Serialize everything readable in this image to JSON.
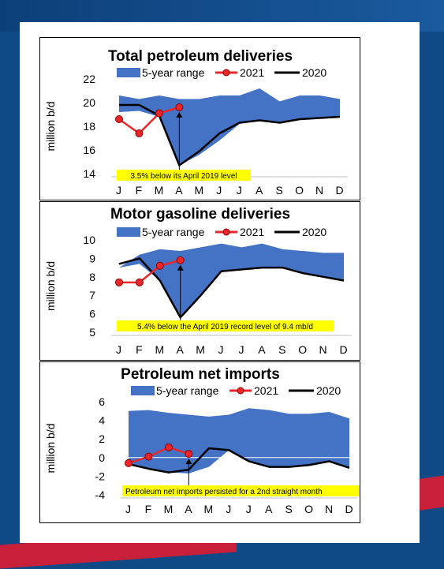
{
  "charts": [
    {
      "title": "Total petroleum deliveries",
      "ylabel": "million b/d",
      "ylim": [
        14,
        22
      ],
      "yticks": [
        14,
        16,
        18,
        20,
        22
      ],
      "months": [
        "J",
        "F",
        "M",
        "A",
        "M",
        "J",
        "J",
        "A",
        "S",
        "O",
        "N",
        "D"
      ],
      "legend": {
        "range": "5-year range",
        "s2021": "2021",
        "s2020": "2020"
      },
      "annotation": "3.5% below its April 2019 level"
    },
    {
      "title": "Motor gasoline deliveries",
      "ylabel": "million b/d",
      "ylim": [
        5,
        10
      ],
      "yticks": [
        5,
        6,
        7,
        8,
        9,
        10
      ],
      "months": [
        "J",
        "F",
        "M",
        "A",
        "M",
        "J",
        "J",
        "A",
        "S",
        "O",
        "N",
        "D"
      ],
      "legend": {
        "range": "5-year range",
        "s2021": "2021",
        "s2020": "2020"
      },
      "annotation": "5.4% below the April 2019 record level of 9.4 mb/d"
    },
    {
      "title": "Petroleum net imports",
      "ylabel": "million b/d",
      "ylim": [
        -4,
        6
      ],
      "yticks": [
        -4,
        -2,
        0,
        2,
        4,
        6
      ],
      "months": [
        "J",
        "F",
        "M",
        "A",
        "M",
        "J",
        "J",
        "A",
        "S",
        "O",
        "N",
        "D"
      ],
      "legend": {
        "range": "5-year range",
        "s2021": "2021",
        "s2020": "2020"
      },
      "annotation": "Petroleum net imports persisted for a 2nd straight month"
    }
  ],
  "chart_data": [
    {
      "type": "area",
      "title": "Total petroleum deliveries",
      "ylabel": "million b/d",
      "ylim": [
        14,
        22
      ],
      "x": [
        "J",
        "F",
        "M",
        "A",
        "M",
        "J",
        "J",
        "A",
        "S",
        "O",
        "N",
        "D"
      ],
      "series": [
        {
          "name": "5-year range",
          "high": [
            20.6,
            20.3,
            20.6,
            20.3,
            20.3,
            20.6,
            20.6,
            21.2,
            20.1,
            20.6,
            20.6,
            20.3
          ],
          "low": [
            19.2,
            19.3,
            18.8,
            14.7,
            15.6,
            16.8,
            18.2,
            18.5,
            18.3,
            18.6,
            18.7,
            18.8
          ]
        },
        {
          "name": "2021",
          "x": [
            "J",
            "F",
            "M",
            "A"
          ],
          "values": [
            18.6,
            17.4,
            19.1,
            19.6
          ]
        },
        {
          "name": "2020",
          "values": [
            19.8,
            19.8,
            18.9,
            14.7,
            15.9,
            17.4,
            18.3,
            18.5,
            18.3,
            18.6,
            18.7,
            18.8
          ]
        }
      ]
    },
    {
      "type": "area",
      "title": "Motor gasoline deliveries",
      "ylabel": "million b/d",
      "ylim": [
        5,
        10
      ],
      "x": [
        "J",
        "F",
        "M",
        "A",
        "M",
        "J",
        "J",
        "A",
        "S",
        "O",
        "N",
        "D"
      ],
      "series": [
        {
          "name": "5-year range",
          "high": [
            8.5,
            9.2,
            9.5,
            9.4,
            9.6,
            9.8,
            9.6,
            9.8,
            9.5,
            9.4,
            9.3,
            9.3
          ],
          "low": [
            8.5,
            8.7,
            7.8,
            5.8,
            7.0,
            8.3,
            8.4,
            8.5,
            8.5,
            8.2,
            8.0,
            7.8
          ]
        },
        {
          "name": "2021",
          "x": [
            "J",
            "F",
            "M",
            "A"
          ],
          "values": [
            7.7,
            7.7,
            8.6,
            8.9
          ]
        },
        {
          "name": "2020",
          "values": [
            8.7,
            9.0,
            7.8,
            5.8,
            7.0,
            8.3,
            8.4,
            8.5,
            8.5,
            8.2,
            8.0,
            7.8
          ]
        }
      ]
    },
    {
      "type": "area",
      "title": "Petroleum net imports",
      "ylabel": "million b/d",
      "ylim": [
        -4,
        6
      ],
      "x": [
        "J",
        "F",
        "M",
        "A",
        "M",
        "J",
        "J",
        "A",
        "S",
        "O",
        "N",
        "D"
      ],
      "series": [
        {
          "name": "5-year range",
          "high": [
            5.0,
            5.1,
            4.8,
            4.6,
            4.4,
            4.6,
            5.3,
            5.1,
            4.7,
            4.7,
            4.9,
            4.2
          ],
          "low": [
            -0.7,
            -1.2,
            -1.6,
            -1.7,
            -1.0,
            0.8,
            -0.4,
            -1.0,
            -1.0,
            -0.8,
            -0.4,
            -1.1
          ]
        },
        {
          "name": "2021",
          "x": [
            "J",
            "F",
            "M",
            "A"
          ],
          "values": [
            -0.6,
            0.1,
            1.1,
            0.4
          ]
        },
        {
          "name": "2020",
          "values": [
            -0.7,
            -1.2,
            -1.6,
            -1.3,
            1.0,
            0.8,
            -0.4,
            -1.0,
            -1.0,
            -0.8,
            -0.4,
            -1.1
          ]
        }
      ]
    }
  ]
}
